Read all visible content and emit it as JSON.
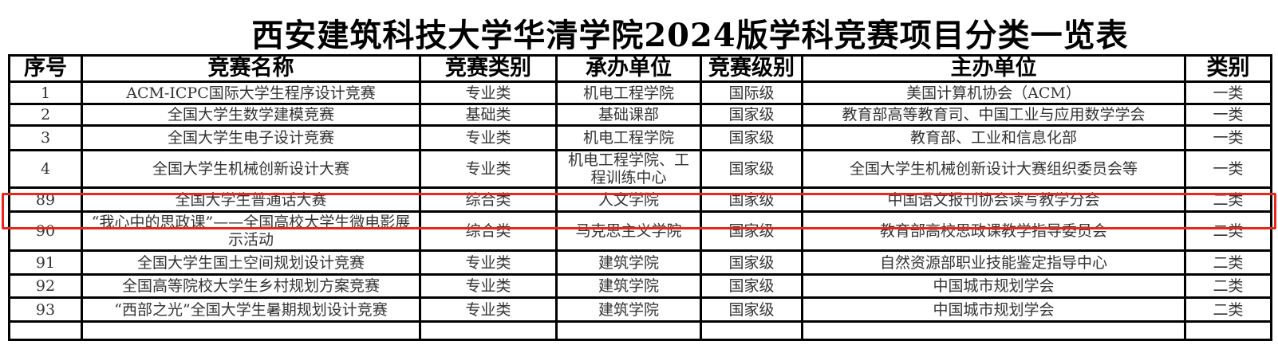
{
  "title": "西安建筑科技大学华清学院2024版学科竞赛项目分类一览表",
  "headers": [
    "序号",
    "竞赛名称",
    "竞赛类别",
    "承办单位",
    "竞赛级别",
    "主办单位",
    "类别"
  ],
  "rows": [
    [
      "1",
      "ACM-ICPC国际大学生程序设计竞赛",
      "专业类",
      "机电工程学院",
      "国际级",
      "美国计算机协会（ACM）",
      "一类"
    ],
    [
      "2",
      "全国大学生数学建模竞赛",
      "基础类",
      "基础课部",
      "国家级",
      "教育部高等教育司、中国工业与应用数学学会",
      "一类"
    ],
    [
      "3",
      "全国大学生电子设计竞赛",
      "专业类",
      "机电工程学院",
      "国家级",
      "教育部、工业和信息化部",
      "一类"
    ],
    [
      "4",
      "全国大学生机械创新设计大赛",
      "专业类",
      "机电工程学院、工程训练中心",
      "国家级",
      "全国大学生机械创新设计大赛组织委员会等",
      "一类"
    ],
    [
      "89",
      "全国大学生普通话大赛",
      "综合类",
      "人文学院",
      "国家级",
      "中国语文报刊协会读写教学分会",
      "二类"
    ],
    [
      "90",
      "“我心中的思政课”——全国高校大学生微电影展示活动",
      "综合类",
      "马克思主义学院",
      "国家级",
      "教育部高校思政课教学指导委员会",
      "二类"
    ],
    [
      "91",
      "全国大学生国土空间规划设计竞赛",
      "专业类",
      "建筑学院",
      "国家级",
      "自然资源部职业技能鉴定指导中心",
      "二类"
    ],
    [
      "92",
      "全国高等院校大学生乡村规划方案竞赛",
      "专业类",
      "建筑学院",
      "国家级",
      "中国城市规划学会",
      "二类"
    ],
    [
      "93",
      "“西部之光”全国大学生暑期规划设计竞赛",
      "专业类",
      "建筑学院",
      "国家级",
      "中国城市规划学会",
      "二类"
    ]
  ],
  "highlight_color": "#e8261c"
}
